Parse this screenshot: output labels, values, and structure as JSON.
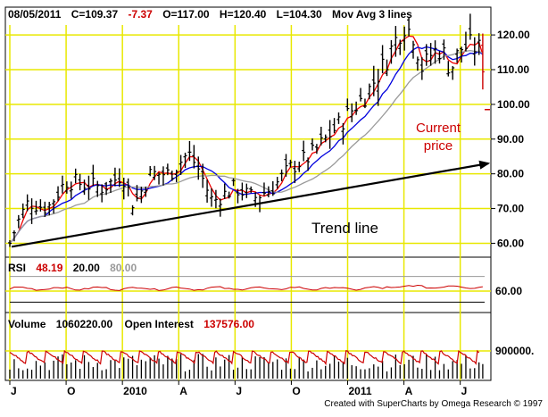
{
  "header": {
    "date": "08/05/2011",
    "close": "C=109.37",
    "change": "-7.37",
    "open": "O=117.00",
    "high": "H=120.40",
    "low": "L=104.30",
    "ma_label": "Mov Avg 3 lines"
  },
  "annotations": {
    "trend_line": "Trend line",
    "current_price_1": "Current",
    "current_price_2": "price"
  },
  "rsi": {
    "label": "RSI",
    "value": "48.19",
    "low": "20.00",
    "high": "80.00",
    "axis_label": "60.00",
    "level_low": 20,
    "level_high": 80
  },
  "volume": {
    "label": "Volume",
    "value": "1060220.00",
    "oi_label": "Open Interest",
    "oi_value": "137576.00",
    "axis_label": "900000."
  },
  "footer": {
    "credit": "Created with SuperCharts by Omega Research © 1997"
  },
  "colors": {
    "grid": "#e8e800",
    "bars": "#000000",
    "ma_fast": "#ee0000",
    "ma_mid": "#0000dd",
    "ma_slow": "#9a9a9a",
    "accent_red": "#cc0000",
    "rsi_line": "#cc0000",
    "oi_line": "#cc0000",
    "frame": "#000000"
  },
  "chart_data": {
    "type": "line",
    "price_axis": {
      "ylim": [
        56,
        128
      ],
      "ticks": [
        60,
        70,
        80,
        90,
        100,
        110,
        120
      ],
      "tick_labels": [
        "60.00",
        "70.00",
        "80.00",
        "90.00",
        "100.00",
        "110.00",
        "120.00"
      ]
    },
    "time_axis": {
      "start": "2009-07",
      "end": "2011-08",
      "month_labels": [
        {
          "label": "J",
          "month_index": 0
        },
        {
          "label": "O",
          "month_index": 3
        },
        {
          "label": "2010",
          "month_index": 6
        },
        {
          "label": "A",
          "month_index": 9
        },
        {
          "label": "J",
          "month_index": 12
        },
        {
          "label": "O",
          "month_index": 15
        },
        {
          "label": "2011",
          "month_index": 18
        },
        {
          "label": "A",
          "month_index": 21
        },
        {
          "label": "J",
          "month_index": 24
        }
      ]
    },
    "trend_line": {
      "from": {
        "month_index": 0.1,
        "price": 59
      },
      "to": {
        "month_index": 25.5,
        "price": 83
      }
    },
    "price_knots": [
      {
        "m": 0.0,
        "p": 60
      },
      {
        "m": 0.5,
        "p": 67
      },
      {
        "m": 1.0,
        "p": 72
      },
      {
        "m": 2.0,
        "p": 70
      },
      {
        "m": 3.0,
        "p": 78
      },
      {
        "m": 4.0,
        "p": 77
      },
      {
        "m": 5.0,
        "p": 76
      },
      {
        "m": 6.0,
        "p": 80
      },
      {
        "m": 6.6,
        "p": 71
      },
      {
        "m": 7.5,
        "p": 80
      },
      {
        "m": 8.5,
        "p": 80
      },
      {
        "m": 9.5,
        "p": 86
      },
      {
        "m": 10.0,
        "p": 82
      },
      {
        "m": 10.8,
        "p": 72
      },
      {
        "m": 12.0,
        "p": 76
      },
      {
        "m": 13.0,
        "p": 73
      },
      {
        "m": 14.0,
        "p": 76
      },
      {
        "m": 15.0,
        "p": 82
      },
      {
        "m": 16.0,
        "p": 85
      },
      {
        "m": 17.0,
        "p": 91
      },
      {
        "m": 18.0,
        "p": 97
      },
      {
        "m": 19.0,
        "p": 103
      },
      {
        "m": 20.0,
        "p": 112
      },
      {
        "m": 20.5,
        "p": 118
      },
      {
        "m": 21.0,
        "p": 123
      },
      {
        "m": 21.5,
        "p": 120
      },
      {
        "m": 22.0,
        "p": 110
      },
      {
        "m": 22.5,
        "p": 115
      },
      {
        "m": 23.0,
        "p": 116
      },
      {
        "m": 23.5,
        "p": 110
      },
      {
        "m": 24.0,
        "p": 116
      },
      {
        "m": 24.5,
        "p": 117
      },
      {
        "m": 25.0,
        "p": 116
      },
      {
        "m": 25.2,
        "p": 109
      }
    ],
    "current_price": 109.37,
    "current_low": 104.3,
    "series": [
      {
        "name": "price bars",
        "kind": "ohlc"
      },
      {
        "kind": "moving-average",
        "color": "red"
      },
      {
        "kind": "moving-average",
        "color": "blue"
      },
      {
        "kind": "moving-average",
        "color": "gray"
      }
    ]
  }
}
